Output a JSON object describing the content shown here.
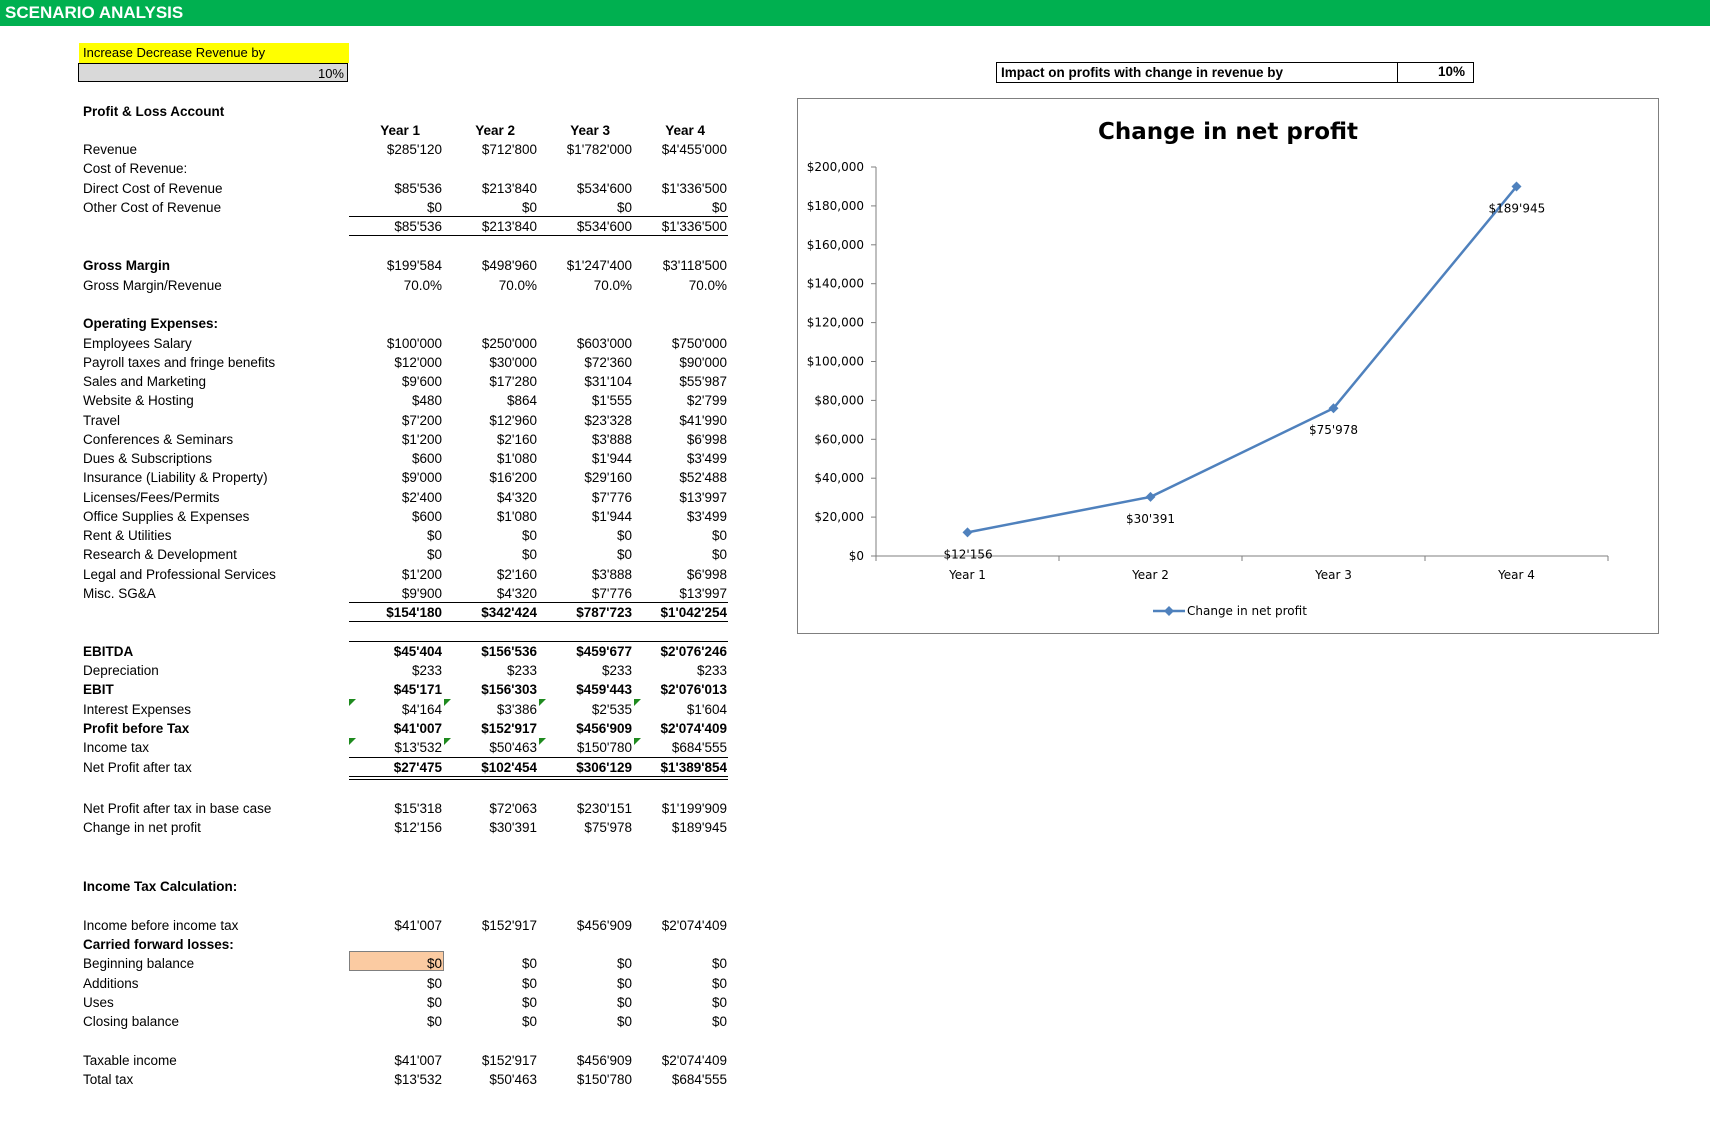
{
  "header": {
    "title": "SCENARIO ANALYSIS",
    "color": "#00b050"
  },
  "input": {
    "label": "Increase Decrease Revenue by",
    "value": "10%"
  },
  "impact": {
    "label": "Impact on profits with change in revenue by",
    "value": "10%"
  },
  "pl": {
    "title": "Profit & Loss Account",
    "years": [
      "Year 1",
      "Year 2",
      "Year 3",
      "Year 4"
    ],
    "rows": [
      {
        "label": "Revenue",
        "values": [
          "$285'120",
          "$712'800",
          "$1'782'000",
          "$4'455'000"
        ]
      },
      {
        "label": "Cost of Revenue:",
        "values": [
          "",
          "",
          "",
          ""
        ]
      },
      {
        "label": "Direct Cost of Revenue",
        "values": [
          "$85'536",
          "$213'840",
          "$534'600",
          "$1'336'500"
        ]
      },
      {
        "label": "Other Cost of Revenue",
        "values": [
          "$0",
          "$0",
          "$0",
          "$0"
        ]
      },
      {
        "label": "",
        "values": [
          "$85'536",
          "$213'840",
          "$534'600",
          "$1'336'500"
        ]
      },
      {
        "label": "Gross Margin",
        "values": [
          "$199'584",
          "$498'960",
          "$1'247'400",
          "$3'118'500"
        ],
        "bold_label": true
      },
      {
        "label": "Gross Margin/Revenue",
        "values": [
          "70.0%",
          "70.0%",
          "70.0%",
          "70.0%"
        ]
      },
      {
        "label": "Operating Expenses:",
        "values": [
          "",
          "",
          "",
          ""
        ],
        "bold_label": true
      },
      {
        "label": "Employees Salary",
        "values": [
          "$100'000",
          "$250'000",
          "$603'000",
          "$750'000"
        ]
      },
      {
        "label": "Payroll taxes and fringe benefits",
        "values": [
          "$12'000",
          "$30'000",
          "$72'360",
          "$90'000"
        ]
      },
      {
        "label": "Sales and Marketing",
        "values": [
          "$9'600",
          "$17'280",
          "$31'104",
          "$55'987"
        ]
      },
      {
        "label": "Website & Hosting",
        "values": [
          "$480",
          "$864",
          "$1'555",
          "$2'799"
        ]
      },
      {
        "label": "Travel",
        "values": [
          "$7'200",
          "$12'960",
          "$23'328",
          "$41'990"
        ]
      },
      {
        "label": "Conferences & Seminars",
        "values": [
          "$1'200",
          "$2'160",
          "$3'888",
          "$6'998"
        ]
      },
      {
        "label": "Dues & Subscriptions",
        "values": [
          "$600",
          "$1'080",
          "$1'944",
          "$3'499"
        ]
      },
      {
        "label": "Insurance (Liability & Property)",
        "values": [
          "$9'000",
          "$16'200",
          "$29'160",
          "$52'488"
        ]
      },
      {
        "label": "Licenses/Fees/Permits",
        "values": [
          "$2'400",
          "$4'320",
          "$7'776",
          "$13'997"
        ]
      },
      {
        "label": "Office Supplies & Expenses",
        "values": [
          "$600",
          "$1'080",
          "$1'944",
          "$3'499"
        ]
      },
      {
        "label": "Rent & Utilities",
        "values": [
          "$0",
          "$0",
          "$0",
          "$0"
        ]
      },
      {
        "label": "Research & Development",
        "values": [
          "$0",
          "$0",
          "$0",
          "$0"
        ]
      },
      {
        "label": "Legal and Professional Services",
        "values": [
          "$1'200",
          "$2'160",
          "$3'888",
          "$6'998"
        ]
      },
      {
        "label": "Misc. SG&A",
        "values": [
          "$9'900",
          "$4'320",
          "$7'776",
          "$13'997"
        ]
      },
      {
        "label": "",
        "values": [
          "$154'180",
          "$342'424",
          "$787'723",
          "$1'042'254"
        ],
        "bold_values": true
      },
      {
        "label": "EBITDA",
        "values": [
          "$45'404",
          "$156'536",
          "$459'677",
          "$2'076'246"
        ],
        "bold_label": true,
        "bold_values": true
      },
      {
        "label": "Depreciation",
        "values": [
          "$233",
          "$233",
          "$233",
          "$233"
        ]
      },
      {
        "label": "EBIT",
        "values": [
          "$45'171",
          "$156'303",
          "$459'443",
          "$2'076'013"
        ],
        "bold_label": true,
        "bold_values": true
      },
      {
        "label": "Interest Expenses",
        "values": [
          "$4'164",
          "$3'386",
          "$2'535",
          "$1'604"
        ]
      },
      {
        "label": "Profit before Tax",
        "values": [
          "$41'007",
          "$152'917",
          "$456'909",
          "$2'074'409"
        ],
        "bold_label": true,
        "bold_values": true
      },
      {
        "label": "Income tax",
        "values": [
          "$13'532",
          "$50'463",
          "$150'780",
          "$684'555"
        ]
      },
      {
        "label": "Net Profit after tax",
        "values": [
          "$27'475",
          "$102'454",
          "$306'129",
          "$1'389'854"
        ],
        "bold_values": true
      },
      {
        "label": "Net Profit after tax in base case",
        "values": [
          "$15'318",
          "$72'063",
          "$230'151",
          "$1'199'909"
        ]
      },
      {
        "label": "Change  in net profit",
        "values": [
          "$12'156",
          "$30'391",
          "$75'978",
          "$189'945"
        ]
      }
    ]
  },
  "tax": {
    "title": "Income Tax Calculation:",
    "rows": [
      {
        "label": "Income before income tax",
        "values": [
          "$41'007",
          "$152'917",
          "$456'909",
          "$2'074'409"
        ]
      },
      {
        "label": "Carried forward losses:",
        "values": [
          "",
          "",
          "",
          ""
        ],
        "bold_label": true
      },
      {
        "label": "Beginning balance",
        "values": [
          "$0",
          "$0",
          "$0",
          "$0"
        ]
      },
      {
        "label": "Additions",
        "values": [
          "$0",
          "$0",
          "$0",
          "$0"
        ]
      },
      {
        "label": "Uses",
        "values": [
          "$0",
          "$0",
          "$0",
          "$0"
        ]
      },
      {
        "label": "Closing balance",
        "values": [
          "$0",
          "$0",
          "$0",
          "$0"
        ]
      },
      {
        "label": "Taxable income",
        "values": [
          "$41'007",
          "$152'917",
          "$456'909",
          "$2'074'409"
        ]
      },
      {
        "label": "Total tax",
        "values": [
          "$13'532",
          "$50'463",
          "$150'780",
          "$684'555"
        ]
      }
    ]
  },
  "chart_data": {
    "type": "line",
    "title": "Change  in net profit",
    "categories": [
      "Year 1",
      "Year 2",
      "Year 3",
      "Year 4"
    ],
    "series": [
      {
        "name": "Change  in net profit",
        "values": [
          12156,
          30391,
          75978,
          189945
        ],
        "labels": [
          "$12'156",
          "$30'391",
          "$75'978",
          "$189'945"
        ],
        "color": "#4f81bd"
      }
    ],
    "ylim": [
      0,
      200000
    ],
    "yticks": [
      "$0",
      "$20,000",
      "$40,000",
      "$60,000",
      "$80,000",
      "$100,000",
      "$120,000",
      "$140,000",
      "$160,000",
      "$180,000",
      "$200,000"
    ],
    "legend": "bottom",
    "grid": false
  }
}
